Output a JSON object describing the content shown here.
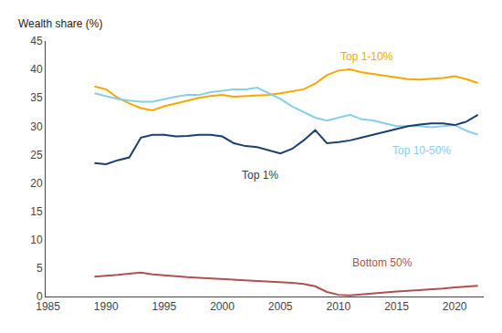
{
  "chart_data": {
    "type": "line",
    "ylabel": "Wealth share (%)",
    "x": [
      1989,
      1990,
      1991,
      1992,
      1993,
      1994,
      1995,
      1996,
      1997,
      1998,
      1999,
      2000,
      2001,
      2002,
      2003,
      2004,
      2005,
      2006,
      2007,
      2008,
      2009,
      2010,
      2011,
      2012,
      2013,
      2014,
      2015,
      2016,
      2017,
      2018,
      2019,
      2020,
      2021,
      2022
    ],
    "series": [
      {
        "name": "Top 1-10%",
        "color": "#F5A800",
        "values": [
          37.0,
          36.5,
          35.0,
          34.0,
          33.2,
          32.8,
          33.5,
          34.0,
          34.5,
          35.0,
          35.3,
          35.5,
          35.2,
          35.3,
          35.5,
          35.5,
          35.8,
          36.2,
          36.5,
          37.5,
          39.0,
          39.8,
          40.0,
          39.5,
          39.2,
          38.8,
          38.5,
          38.3,
          38.2,
          38.3,
          38.5,
          38.8,
          38.3,
          37.6
        ]
      },
      {
        "name": "Top 10-50%",
        "color": "#87CEEB",
        "values": [
          35.8,
          35.3,
          34.8,
          34.5,
          34.3,
          34.3,
          34.8,
          35.2,
          35.5,
          35.5,
          36.0,
          36.3,
          36.5,
          36.5,
          36.8,
          35.8,
          34.8,
          33.5,
          32.5,
          31.5,
          31.0,
          31.5,
          32.0,
          31.2,
          31.0,
          30.5,
          30.0,
          30.0,
          30.0,
          29.8,
          30.0,
          30.2,
          29.2,
          28.5
        ]
      },
      {
        "name": "Top 1%",
        "color": "#1B3F6E",
        "values": [
          23.5,
          23.3,
          24.0,
          24.5,
          28.0,
          28.5,
          28.5,
          28.2,
          28.3,
          28.5,
          28.5,
          28.2,
          27.0,
          26.5,
          26.3,
          25.8,
          25.2,
          26.0,
          27.5,
          29.3,
          27.0,
          27.2,
          27.5,
          28.0,
          28.5,
          29.0,
          29.5,
          30.0,
          30.3,
          30.5,
          30.5,
          30.2,
          30.8,
          32.0
        ]
      },
      {
        "name": "Bottom 50%",
        "color": "#B05050",
        "values": [
          3.5,
          3.6,
          3.8,
          4.0,
          4.2,
          3.9,
          3.7,
          3.5,
          3.4,
          3.3,
          3.2,
          3.1,
          2.9,
          2.8,
          2.7,
          2.6,
          2.5,
          2.4,
          2.2,
          1.8,
          0.8,
          0.3,
          0.2,
          0.4,
          0.6,
          0.8,
          0.9,
          1.0,
          1.1,
          1.2,
          1.4,
          1.6,
          1.8,
          1.9
        ]
      }
    ],
    "annotations": [
      {
        "text": "Top 1-10%",
        "x": 2010.0,
        "y": 40.8,
        "color": "#F5A800",
        "va": "bottom"
      },
      {
        "text": "Top 10-50%",
        "x": 2014.5,
        "y": 27.2,
        "color": "#87CEEB",
        "va": "top"
      },
      {
        "text": "Top 1%",
        "x": 2001.5,
        "y": 22.8,
        "color": "#1B3F6E",
        "va": "top"
      },
      {
        "text": "Bottom 50%",
        "x": 2011.0,
        "y": 4.5,
        "color": "#B05050",
        "va": "bottom"
      }
    ],
    "xlim": [
      1984.8,
      2022.5
    ],
    "xticks": [
      1985,
      1990,
      1995,
      2000,
      2005,
      2010,
      2015,
      2020
    ],
    "ylim": [
      0,
      45
    ],
    "yticks": [
      0,
      5,
      10,
      15,
      20,
      25,
      30,
      35,
      40,
      45
    ],
    "grid": false,
    "legend": false
  }
}
